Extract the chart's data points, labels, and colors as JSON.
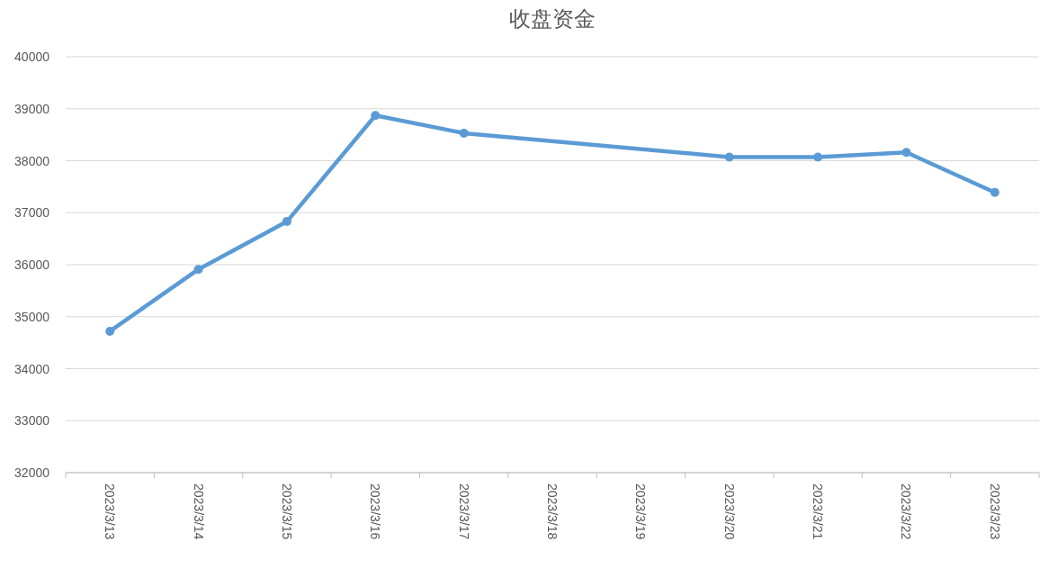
{
  "chart_data": {
    "type": "line",
    "title": "收盘资金",
    "x": [
      "2023-03-13",
      "2023-03-14",
      "2023-03-15",
      "2023-03-16",
      "2023-03-17",
      "2023-03-20",
      "2023-03-21",
      "2023-03-22",
      "2023-03-23"
    ],
    "series": [
      {
        "color": "#5b9bd5",
        "values": [
          34720,
          35910,
          36830,
          38870,
          38530,
          38070,
          38070,
          38160,
          37390
        ]
      }
    ],
    "xlim": [
      "2023-03-12T12:00",
      "2023-03-23T12:00"
    ],
    "xticks": [
      {
        "value": "2023-03-13",
        "label": "2023/3/13"
      },
      {
        "value": "2023-03-14",
        "label": "2023/3/14"
      },
      {
        "value": "2023-03-15",
        "label": "2023/3/15"
      },
      {
        "value": "2023-03-16",
        "label": "2023/3/16"
      },
      {
        "value": "2023-03-17",
        "label": "2023/3/17"
      },
      {
        "value": "2023-03-18",
        "label": "2023/3/18"
      },
      {
        "value": "2023-03-19",
        "label": "2023/3/19"
      },
      {
        "value": "2023-03-20",
        "label": "2023/3/20"
      },
      {
        "value": "2023-03-21",
        "label": "2023/3/21"
      },
      {
        "value": "2023-03-22",
        "label": "2023/3/22"
      },
      {
        "value": "2023-03-23",
        "label": "2023/3/23"
      }
    ],
    "ylim": [
      32000,
      40000
    ],
    "yticks": [
      32000,
      33000,
      34000,
      35000,
      36000,
      37000,
      38000,
      39000,
      40000
    ],
    "grid": "y",
    "marker": "circle",
    "line_style": "solid"
  }
}
